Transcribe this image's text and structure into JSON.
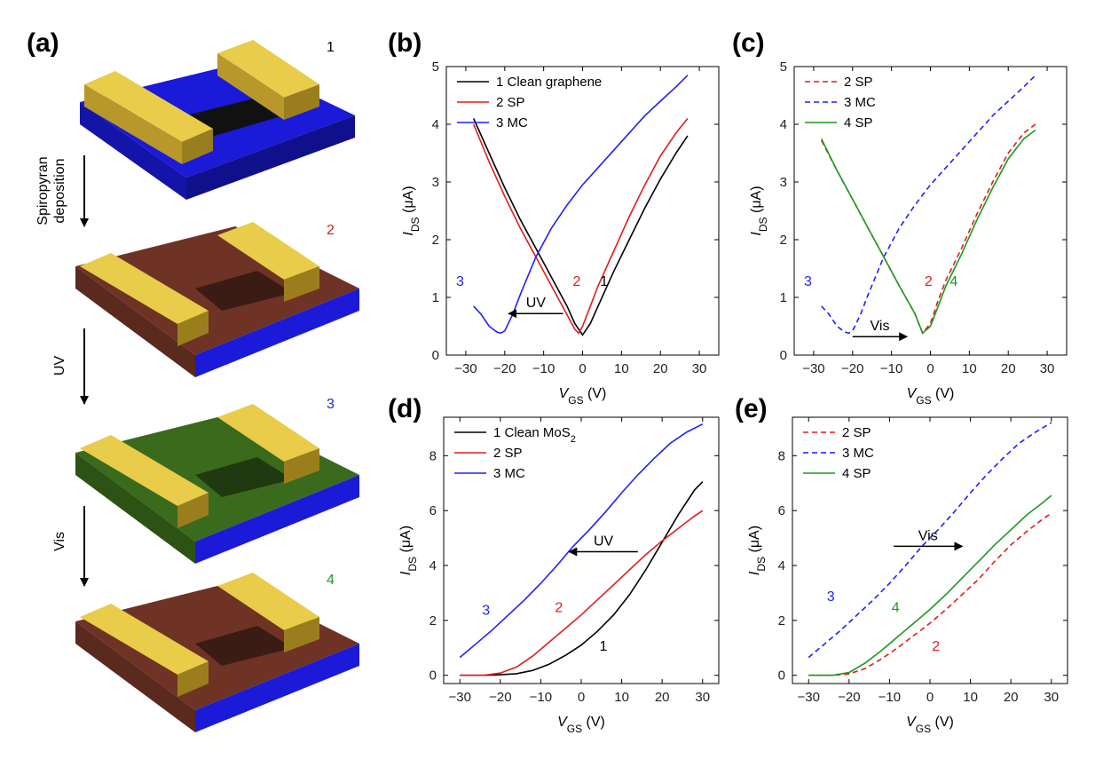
{
  "panel_labels": {
    "a": "(a)",
    "b": "(b)",
    "c": "(c)",
    "d": "(d)",
    "e": "(e)"
  },
  "devices": [
    {
      "step": "1",
      "layer_color": "#1a1ad8",
      "step_color": "#000000"
    },
    {
      "step": "2",
      "layer_color": "#7a3a2a",
      "step_color": "#e31a1c"
    },
    {
      "step": "3",
      "layer_color": "#3a6a1c",
      "step_color": "#1f1fd0"
    },
    {
      "step": "4",
      "layer_color": "#7a3a2a",
      "step_color": "#1a9a1a"
    }
  ],
  "arrows": [
    {
      "label_lines": [
        "Spiropyran",
        "deposition"
      ]
    },
    {
      "label_lines": [
        "UV"
      ]
    },
    {
      "label_lines": [
        "Vis"
      ]
    }
  ],
  "colors": {
    "black": "#000000",
    "red": "#e31a1c",
    "blue": "#1f1fff",
    "green": "#1a9a1a",
    "gold": "#d9b933",
    "substrate": "#1a1ad8"
  },
  "chart_data": [
    {
      "id": "b",
      "type": "line",
      "xlabel": "V_GS (V)",
      "ylabel": "I_DS (μA)",
      "xlim": [
        -35,
        35
      ],
      "ylim": [
        0,
        5
      ],
      "xticks": [
        -30,
        -20,
        -10,
        0,
        10,
        20,
        30
      ],
      "yticks": [
        0,
        1,
        2,
        3,
        4,
        5
      ],
      "legend": "top-left",
      "series": [
        {
          "name": "1 Clean graphene",
          "color": "#000000",
          "dash": false,
          "x": [
            -28,
            -24,
            -20,
            -16,
            -12,
            -8,
            -4,
            -2,
            0,
            2,
            4,
            8,
            12,
            16,
            20,
            24,
            27
          ],
          "y": [
            4.1,
            3.5,
            2.9,
            2.35,
            1.85,
            1.35,
            0.85,
            0.55,
            0.35,
            0.55,
            0.85,
            1.45,
            2.0,
            2.55,
            3.05,
            3.5,
            3.8
          ]
        },
        {
          "name": "2 SP",
          "color": "#e31a1c",
          "dash": false,
          "x": [
            -28,
            -24,
            -20,
            -16,
            -12,
            -8,
            -4,
            -2,
            -1,
            0,
            2,
            4,
            8,
            12,
            16,
            20,
            24,
            27
          ],
          "y": [
            4.0,
            3.35,
            2.75,
            2.2,
            1.7,
            1.2,
            0.7,
            0.45,
            0.38,
            0.5,
            0.85,
            1.2,
            1.8,
            2.4,
            2.95,
            3.45,
            3.85,
            4.1
          ]
        },
        {
          "name": "3 MC",
          "color": "#1f1fff",
          "dash": false,
          "x": [
            -28,
            -26,
            -24,
            -22,
            -21,
            -20,
            -18,
            -16,
            -12,
            -8,
            -4,
            0,
            4,
            8,
            12,
            16,
            20,
            24,
            27
          ],
          "y": [
            0.85,
            0.7,
            0.5,
            0.4,
            0.38,
            0.42,
            0.7,
            1.05,
            1.7,
            2.2,
            2.6,
            2.95,
            3.25,
            3.55,
            3.85,
            4.15,
            4.4,
            4.65,
            4.85
          ]
        }
      ],
      "curve_labels": [
        {
          "text": "3",
          "color": "#1f1fff",
          "x": -32.5,
          "y": 1.2
        },
        {
          "text": "2",
          "color": "#e31a1c",
          "x": -2.5,
          "y": 1.2
        },
        {
          "text": "1",
          "color": "#000000",
          "x": 4.5,
          "y": 1.2
        }
      ],
      "arrow": {
        "text": "UV",
        "x_from": -5,
        "x_to": -19,
        "y": 0.72
      }
    },
    {
      "id": "c",
      "type": "line",
      "xlabel": "V_GS (V)",
      "ylabel": "I_DS (μA)",
      "xlim": [
        -35,
        35
      ],
      "ylim": [
        0,
        5
      ],
      "xticks": [
        -30,
        -20,
        -10,
        0,
        10,
        20,
        30
      ],
      "yticks": [
        0,
        1,
        2,
        3,
        4,
        5
      ],
      "legend": "top-left",
      "series": [
        {
          "name": "2 SP",
          "color": "#e31a1c",
          "dash": true,
          "x": [
            -28,
            -24,
            -20,
            -16,
            -12,
            -8,
            -4,
            -2,
            0,
            2,
            4,
            8,
            12,
            16,
            20,
            24,
            27
          ],
          "y": [
            3.72,
            3.2,
            2.7,
            2.2,
            1.7,
            1.2,
            0.72,
            0.38,
            0.55,
            0.95,
            1.3,
            1.85,
            2.45,
            3.0,
            3.5,
            3.85,
            4.0
          ]
        },
        {
          "name": "3 MC",
          "color": "#1f1fff",
          "dash": true,
          "x": [
            -28,
            -26,
            -24,
            -22,
            -21,
            -20,
            -18,
            -16,
            -12,
            -8,
            -4,
            0,
            4,
            8,
            12,
            16,
            20,
            24,
            27
          ],
          "y": [
            0.85,
            0.7,
            0.5,
            0.4,
            0.38,
            0.42,
            0.7,
            1.05,
            1.7,
            2.2,
            2.6,
            2.95,
            3.25,
            3.55,
            3.85,
            4.15,
            4.4,
            4.65,
            4.85
          ]
        },
        {
          "name": "4 SP",
          "color": "#1a9a1a",
          "dash": false,
          "x": [
            -28,
            -24,
            -20,
            -16,
            -12,
            -8,
            -4,
            -2,
            0,
            2,
            4,
            8,
            12,
            16,
            20,
            24,
            27
          ],
          "y": [
            3.75,
            3.2,
            2.7,
            2.2,
            1.7,
            1.2,
            0.72,
            0.38,
            0.5,
            0.85,
            1.2,
            1.75,
            2.35,
            2.9,
            3.4,
            3.75,
            3.9
          ]
        }
      ],
      "curve_labels": [
        {
          "text": "3",
          "color": "#1f1fff",
          "x": -32.5,
          "y": 1.2
        },
        {
          "text": "2",
          "color": "#e31a1c",
          "x": -1.5,
          "y": 1.2
        },
        {
          "text": "4",
          "color": "#1a9a1a",
          "x": 5.0,
          "y": 1.2
        }
      ],
      "arrow": {
        "text": "Vis",
        "x_from": -20,
        "x_to": -6,
        "y": 0.32
      }
    },
    {
      "id": "d",
      "type": "line",
      "xlabel": "V_GS (V)",
      "ylabel": "I_DS (μA)",
      "xlim": [
        -34,
        34
      ],
      "ylim": [
        -0.3,
        9.4
      ],
      "xticks": [
        -30,
        -20,
        -10,
        0,
        10,
        20,
        30
      ],
      "yticks": [
        0,
        2,
        4,
        6,
        8
      ],
      "legend": "top-left",
      "series": [
        {
          "name": "1 Clean MoS",
          "subscript": "2",
          "color": "#000000",
          "dash": false,
          "x": [
            -30,
            -24,
            -20,
            -16,
            -12,
            -8,
            -4,
            0,
            4,
            8,
            12,
            16,
            20,
            24,
            28,
            30
          ],
          "y": [
            0,
            0,
            0.02,
            0.06,
            0.18,
            0.4,
            0.72,
            1.1,
            1.6,
            2.2,
            2.95,
            3.85,
            4.85,
            5.85,
            6.75,
            7.05
          ]
        },
        {
          "name": "2 SP",
          "color": "#e31a1c",
          "dash": false,
          "x": [
            -30,
            -24,
            -20,
            -16,
            -12,
            -8,
            -4,
            0,
            4,
            8,
            12,
            16,
            20,
            24,
            28,
            30
          ],
          "y": [
            0,
            0,
            0.08,
            0.3,
            0.7,
            1.2,
            1.7,
            2.2,
            2.75,
            3.3,
            3.85,
            4.4,
            4.9,
            5.35,
            5.8,
            6.0
          ]
        },
        {
          "name": "3 MC",
          "color": "#1f1fff",
          "dash": false,
          "x": [
            -30,
            -26,
            -22,
            -18,
            -14,
            -10,
            -6,
            -2,
            2,
            6,
            10,
            14,
            18,
            22,
            26,
            30
          ],
          "y": [
            0.65,
            1.15,
            1.65,
            2.2,
            2.75,
            3.35,
            4.0,
            4.7,
            5.3,
            5.95,
            6.65,
            7.3,
            7.9,
            8.45,
            8.85,
            9.15
          ]
        }
      ],
      "curve_labels": [
        {
          "text": "3",
          "color": "#1f1fff",
          "x": -24.5,
          "y": 2.2
        },
        {
          "text": "2",
          "color": "#e31a1c",
          "x": -6.5,
          "y": 2.3
        },
        {
          "text": "1",
          "color": "#000000",
          "x": 4.5,
          "y": 0.9
        }
      ],
      "arrow": {
        "text": "UV",
        "x_from": 14,
        "x_to": -3,
        "y": 4.5
      }
    },
    {
      "id": "e",
      "type": "line",
      "xlabel": "V_GS (V)",
      "ylabel": "I_DS (μA)",
      "xlim": [
        -34,
        34
      ],
      "ylim": [
        -0.3,
        9.4
      ],
      "xticks": [
        -30,
        -20,
        -10,
        0,
        10,
        20,
        30
      ],
      "yticks": [
        0,
        2,
        4,
        6,
        8
      ],
      "legend": "top-left",
      "series": [
        {
          "name": "2 SP",
          "color": "#e31a1c",
          "dash": true,
          "x": [
            -30,
            -24,
            -20,
            -16,
            -12,
            -8,
            -4,
            0,
            4,
            8,
            12,
            16,
            20,
            24,
            28,
            30
          ],
          "y": [
            0,
            0,
            0.05,
            0.25,
            0.6,
            1.0,
            1.45,
            1.9,
            2.4,
            2.95,
            3.5,
            4.15,
            4.75,
            5.25,
            5.7,
            5.9
          ]
        },
        {
          "name": "3 MC",
          "color": "#1f1fff",
          "dash": true,
          "x": [
            -30,
            -26,
            -22,
            -18,
            -14,
            -10,
            -6,
            -2,
            2,
            6,
            10,
            14,
            18,
            22,
            26,
            30
          ],
          "y": [
            0.65,
            1.15,
            1.65,
            2.2,
            2.75,
            3.35,
            4.0,
            4.7,
            5.3,
            5.95,
            6.65,
            7.3,
            7.9,
            8.45,
            8.85,
            9.2
          ]
        },
        {
          "name": "4 SP",
          "color": "#1a9a1a",
          "dash": false,
          "x": [
            -30,
            -24,
            -20,
            -16,
            -12,
            -8,
            -4,
            0,
            4,
            8,
            12,
            16,
            20,
            24,
            28,
            30
          ],
          "y": [
            0,
            0,
            0.1,
            0.45,
            0.9,
            1.4,
            1.9,
            2.4,
            2.95,
            3.55,
            4.15,
            4.75,
            5.3,
            5.85,
            6.3,
            6.55
          ]
        }
      ],
      "curve_labels": [
        {
          "text": "3",
          "color": "#1f1fff",
          "x": -25.5,
          "y": 2.7
        },
        {
          "text": "4",
          "color": "#1a9a1a",
          "x": -9.5,
          "y": 2.3
        },
        {
          "text": "2",
          "color": "#e31a1c",
          "x": 0.5,
          "y": 0.9
        }
      ],
      "arrow": {
        "text": "Vis",
        "x_from": -9,
        "x_to": 8,
        "y": 4.7
      }
    }
  ]
}
